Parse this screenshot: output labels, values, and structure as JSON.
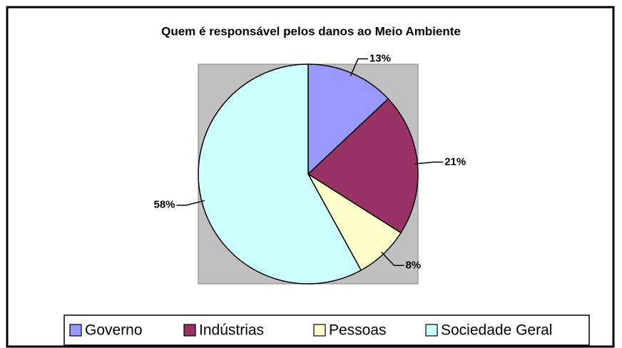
{
  "chart_data": {
    "type": "pie",
    "title": "Quem é responsável pelos danos ao Meio Ambiente",
    "categories": [
      "Governo",
      "Indústrias",
      "Pessoas",
      "Sociedade Geral"
    ],
    "values": [
      13,
      21,
      8,
      58
    ],
    "value_labels": [
      "13%",
      "21%",
      "8%",
      "58%"
    ],
    "colors": [
      "#9999ff",
      "#993366",
      "#ffffcc",
      "#ccffff"
    ],
    "legend": "bottom"
  }
}
